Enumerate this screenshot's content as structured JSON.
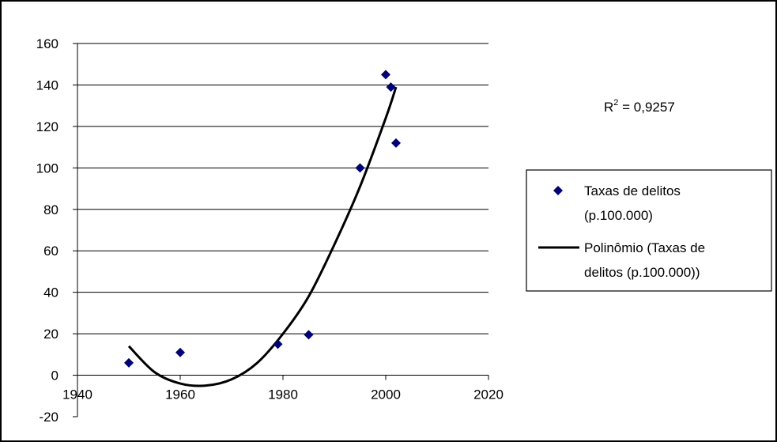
{
  "chart_data": {
    "type": "scatter",
    "title": "",
    "xlabel": "",
    "ylabel": "",
    "xlim": [
      1940,
      2020
    ],
    "ylim": [
      -20,
      160
    ],
    "x_ticks": [
      1940,
      1960,
      1980,
      2000,
      2020
    ],
    "y_ticks": [
      -20,
      0,
      20,
      40,
      60,
      80,
      100,
      120,
      140,
      160
    ],
    "x_tick_labels": [
      "1940",
      "1960",
      "1980",
      "2000",
      "2020"
    ],
    "y_tick_labels": [
      "-20",
      "0",
      "20",
      "40",
      "60",
      "80",
      "100",
      "120",
      "140",
      "160"
    ],
    "grid": "horizontal",
    "legend_position": "right",
    "series": [
      {
        "name": "Taxas de delitos (p.100.000)",
        "kind": "points",
        "color": "#000080",
        "marker": "diamond",
        "x": [
          1950,
          1960,
          1979,
          1985,
          1995,
          2000,
          2001,
          2002
        ],
        "y": [
          6,
          11,
          15,
          19.5,
          100,
          145,
          139,
          112
        ]
      },
      {
        "name": "Polinômio (Taxas de delitos (p.100.000))",
        "kind": "trendline",
        "color": "#000000",
        "x": [
          1950,
          1955,
          1960,
          1965,
          1970,
          1975,
          1980,
          1985,
          1990,
          1995,
          2000,
          2002
        ],
        "y": [
          14,
          1.5,
          -4,
          -5,
          -2,
          6,
          20,
          38,
          63,
          91,
          124,
          139
        ]
      }
    ],
    "legend": {
      "line1": "Taxas de delitos",
      "line2": "(p.100.000)",
      "line3": "Polinômio (Taxas de",
      "line4": "delitos (p.100.000))"
    },
    "annotation": {
      "r_label": "R",
      "r_sup": "2",
      "r_value": " = 0,9257"
    }
  }
}
